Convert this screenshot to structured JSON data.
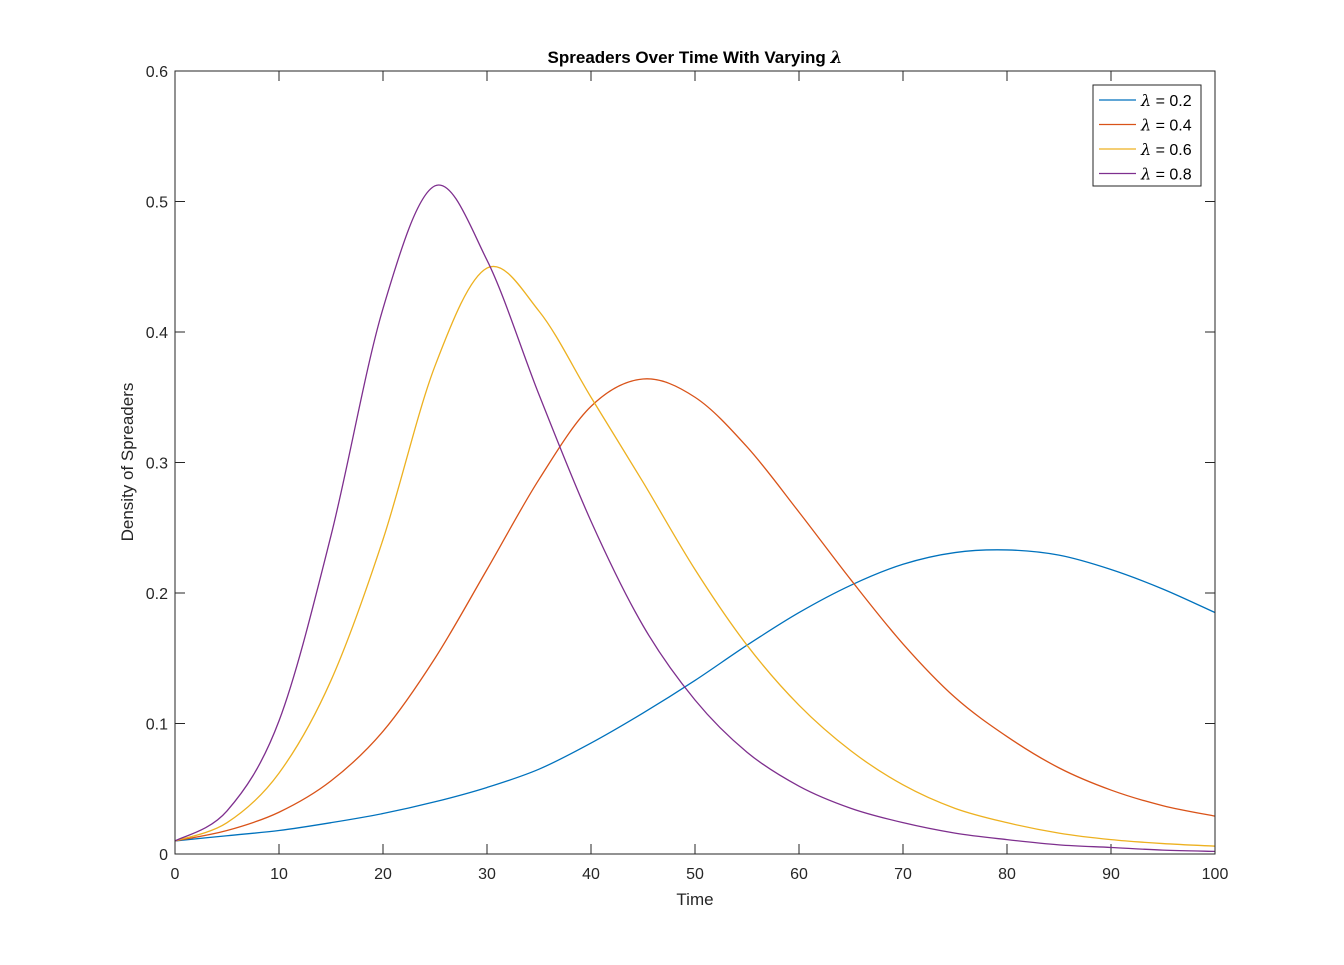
{
  "chart_data": {
    "type": "line",
    "title_prefix": "Spreaders Over Time With Varying ",
    "title_symbol": "λ",
    "xlabel": "Time",
    "ylabel": "Density of Spreaders",
    "xlim": [
      0,
      100
    ],
    "ylim": [
      0,
      0.6
    ],
    "xticks": [
      "0",
      "10",
      "20",
      "30",
      "40",
      "50",
      "60",
      "70",
      "80",
      "90",
      "100"
    ],
    "yticks": [
      "0",
      "0.1",
      "0.2",
      "0.3",
      "0.4",
      "0.5",
      "0.6"
    ],
    "grid": false,
    "legend_position": "top-right",
    "x": [
      0,
      5,
      10,
      15,
      20,
      25,
      30,
      35,
      40,
      45,
      50,
      55,
      60,
      65,
      70,
      75,
      80,
      85,
      90,
      95,
      100
    ],
    "series": [
      {
        "name": "λ = 0.2",
        "legend_symbol": "λ",
        "legend_value": " = 0.2",
        "color": "#0072BD",
        "values": [
          0.01,
          0.014,
          0.018,
          0.024,
          0.031,
          0.04,
          0.051,
          0.065,
          0.085,
          0.108,
          0.133,
          0.16,
          0.185,
          0.206,
          0.222,
          0.231,
          0.233,
          0.229,
          0.218,
          0.203,
          0.185
        ]
      },
      {
        "name": "λ = 0.4",
        "legend_symbol": "λ",
        "legend_value": " = 0.4",
        "color": "#D95319",
        "values": [
          0.01,
          0.018,
          0.032,
          0.056,
          0.094,
          0.15,
          0.218,
          0.287,
          0.343,
          0.364,
          0.35,
          0.312,
          0.262,
          0.21,
          0.161,
          0.12,
          0.09,
          0.066,
          0.049,
          0.037,
          0.029
        ]
      },
      {
        "name": "λ = 0.6",
        "legend_symbol": "λ",
        "legend_value": " = 0.6",
        "color": "#EDB120",
        "values": [
          0.01,
          0.024,
          0.062,
          0.133,
          0.241,
          0.374,
          0.449,
          0.416,
          0.35,
          0.285,
          0.218,
          0.16,
          0.114,
          0.079,
          0.053,
          0.035,
          0.024,
          0.016,
          0.011,
          0.008,
          0.006
        ]
      },
      {
        "name": "λ = 0.8",
        "legend_symbol": "λ",
        "legend_value": " = 0.8",
        "color": "#7E2F8E",
        "values": [
          0.01,
          0.033,
          0.102,
          0.244,
          0.418,
          0.512,
          0.455,
          0.352,
          0.255,
          0.175,
          0.118,
          0.078,
          0.052,
          0.035,
          0.024,
          0.016,
          0.011,
          0.007,
          0.005,
          0.003,
          0.002
        ]
      }
    ]
  }
}
